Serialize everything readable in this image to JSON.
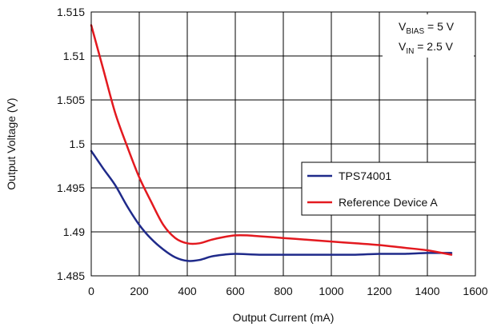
{
  "chart_data": {
    "type": "line",
    "title": "",
    "xlabel": "Output Current (mA)",
    "ylabel": "Output Voltage (V)",
    "xlim": [
      0,
      1600
    ],
    "ylim": [
      1.485,
      1.515
    ],
    "x_ticks": [
      "0",
      "200",
      "400",
      "600",
      "800",
      "1000",
      "1200",
      "1400",
      "1600"
    ],
    "y_ticks": [
      "1.485",
      "1.49",
      "1.495",
      "1.5",
      "1.505",
      "1.51",
      "1.515"
    ],
    "grid": true,
    "legend_position": "center-right",
    "annotations": {
      "bias": {
        "main": "V",
        "sub": "BIAS",
        "rest": " = 5 V"
      },
      "input": {
        "main": "V",
        "sub": "IN",
        "rest": " = 2.5 V"
      }
    },
    "series": [
      {
        "name": "TPS74001",
        "color": "#1f2a8a",
        "x": [
          0,
          50,
          100,
          150,
          200,
          250,
          300,
          350,
          400,
          450,
          500,
          550,
          600,
          700,
          800,
          900,
          1000,
          1100,
          1200,
          1300,
          1400,
          1500
        ],
        "y": [
          1.4992,
          1.4972,
          1.4953,
          1.4929,
          1.4908,
          1.4892,
          1.488,
          1.4871,
          1.4867,
          1.4868,
          1.4872,
          1.4874,
          1.4875,
          1.4874,
          1.4874,
          1.4874,
          1.4874,
          1.4874,
          1.4875,
          1.4875,
          1.4876,
          1.4876
        ]
      },
      {
        "name": "Reference Device A",
        "color": "#e3191f",
        "x": [
          0,
          50,
          100,
          150,
          200,
          250,
          300,
          350,
          400,
          450,
          500,
          550,
          600,
          650,
          700,
          800,
          900,
          1000,
          1100,
          1200,
          1300,
          1400,
          1500
        ],
        "y": [
          1.5135,
          1.5085,
          1.5035,
          1.4997,
          1.4962,
          1.4934,
          1.4908,
          1.4893,
          1.4887,
          1.4887,
          1.4891,
          1.4894,
          1.4896,
          1.4896,
          1.4895,
          1.4893,
          1.4891,
          1.4889,
          1.4887,
          1.4885,
          1.4882,
          1.4879,
          1.4874
        ]
      }
    ]
  }
}
